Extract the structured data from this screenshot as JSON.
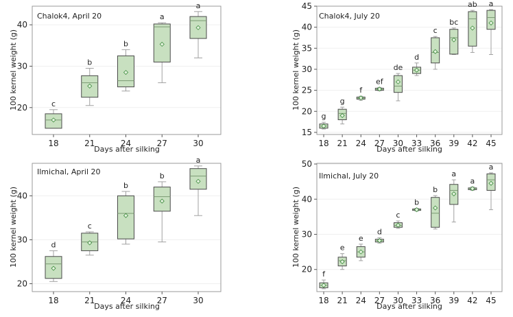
{
  "chart_data": [
    {
      "type": "box",
      "title": "Chalok4, April 20",
      "xlabel": "Days after silking",
      "ylabel": "100 kernel weight (g)",
      "ylim": [
        13.5,
        44.5
      ],
      "yticks": [
        20,
        30,
        40
      ],
      "categories": [
        "18",
        "21",
        "24",
        "27",
        "30"
      ],
      "boxes": [
        {
          "min": 15.0,
          "q1": 15.0,
          "median": 17.0,
          "q3": 18.5,
          "max": 19.5,
          "mean": 17.0,
          "letter": "c"
        },
        {
          "min": 20.5,
          "q1": 22.5,
          "median": 26.0,
          "q3": 27.7,
          "max": 29.5,
          "mean": 25.2,
          "letter": "b"
        },
        {
          "min": 24.0,
          "q1": 25.0,
          "median": 26.5,
          "q3": 32.5,
          "max": 34.0,
          "mean": 28.5,
          "letter": "b"
        },
        {
          "min": 26.0,
          "q1": 31.0,
          "median": 39.5,
          "q3": 40.2,
          "max": 40.5,
          "mean": 35.3,
          "letter": "a"
        },
        {
          "min": 32.0,
          "q1": 36.7,
          "median": 41.0,
          "q3": 42.0,
          "max": 43.2,
          "mean": 39.3,
          "letter": "a"
        }
      ]
    },
    {
      "type": "box",
      "title": "Chalok4, July 20",
      "xlabel": "Days after silking",
      "ylabel": "100 kernel weight (g)",
      "ylim": [
        14.5,
        45
      ],
      "yticks": [
        15,
        20,
        25,
        30,
        35,
        40,
        45
      ],
      "categories": [
        "18",
        "21",
        "24",
        "27",
        "30",
        "33",
        "36",
        "39",
        "42",
        "45"
      ],
      "boxes": [
        {
          "min": 15.8,
          "q1": 16.0,
          "median": 16.5,
          "q3": 17.0,
          "max": 17.4,
          "mean": 16.5,
          "letter": "g"
        },
        {
          "min": 17.0,
          "q1": 18.0,
          "median": 19.5,
          "q3": 20.5,
          "max": 21.0,
          "mean": 19.0,
          "letter": "g"
        },
        {
          "min": 22.6,
          "q1": 22.9,
          "median": 23.1,
          "q3": 23.4,
          "max": 23.6,
          "mean": 23.2,
          "letter": "f"
        },
        {
          "min": 24.9,
          "q1": 25.0,
          "median": 25.2,
          "q3": 25.5,
          "max": 25.7,
          "mean": 25.3,
          "letter": "ef"
        },
        {
          "min": 22.5,
          "q1": 24.5,
          "median": 26.0,
          "q3": 28.5,
          "max": 29.0,
          "mean": 27.0,
          "letter": "de"
        },
        {
          "min": 28.5,
          "q1": 29.0,
          "median": 29.8,
          "q3": 30.5,
          "max": 31.5,
          "mean": 29.8,
          "letter": "d"
        },
        {
          "min": 30.0,
          "q1": 31.5,
          "median": 34.0,
          "q3": 37.5,
          "max": 37.8,
          "mean": 34.2,
          "letter": "c"
        },
        {
          "min": 33.5,
          "q1": 33.6,
          "median": 37.5,
          "q3": 39.5,
          "max": 39.8,
          "mean": 37.0,
          "letter": "bc"
        },
        {
          "min": 34.0,
          "q1": 35.5,
          "median": 42.0,
          "q3": 43.7,
          "max": 44.0,
          "mean": 39.8,
          "letter": "ab"
        },
        {
          "min": 33.5,
          "q1": 39.5,
          "median": 42.3,
          "q3": 44.0,
          "max": 44.2,
          "mean": 41.0,
          "letter": "a"
        }
      ]
    },
    {
      "type": "box",
      "title": "Ilmichal, April 20",
      "xlabel": "Days after silking",
      "ylabel": "100 kernel weight (g)",
      "ylim": [
        18.2,
        47.4
      ],
      "yticks": [
        20,
        30,
        40
      ],
      "categories": [
        "18",
        "21",
        "24",
        "27",
        "30"
      ],
      "boxes": [
        {
          "min": 20.5,
          "q1": 21.2,
          "median": 24.5,
          "q3": 26.2,
          "max": 27.5,
          "mean": 23.5,
          "letter": "d"
        },
        {
          "min": 26.5,
          "q1": 27.5,
          "median": 29.5,
          "q3": 31.5,
          "max": 31.8,
          "mean": 29.3,
          "letter": "c"
        },
        {
          "min": 29.0,
          "q1": 30.2,
          "median": 36.0,
          "q3": 40.0,
          "max": 41.0,
          "mean": 35.5,
          "letter": "b"
        },
        {
          "min": 29.5,
          "q1": 36.5,
          "median": 39.8,
          "q3": 42.0,
          "max": 43.2,
          "mean": 38.8,
          "letter": "b"
        },
        {
          "min": 35.5,
          "q1": 41.5,
          "median": 44.5,
          "q3": 46.2,
          "max": 46.8,
          "mean": 43.3,
          "letter": "a"
        }
      ]
    },
    {
      "type": "box",
      "title": "Ilmichal, July 20",
      "xlabel": "Days after silking",
      "ylabel": "100 kernel weight (g)",
      "ylim": [
        13.7,
        50.2
      ],
      "yticks": [
        20,
        30,
        40,
        50
      ],
      "categories": [
        "18",
        "21",
        "24",
        "27",
        "30",
        "33",
        "36",
        "39",
        "42",
        "45"
      ],
      "boxes": [
        {
          "min": 14.5,
          "q1": 14.8,
          "median": 15.5,
          "q3": 16.2,
          "max": 17.0,
          "mean": 15.5,
          "letter": "f"
        },
        {
          "min": 20.0,
          "q1": 21.0,
          "median": 22.5,
          "q3": 23.5,
          "max": 24.5,
          "mean": 22.2,
          "letter": "e"
        },
        {
          "min": 22.5,
          "q1": 23.5,
          "median": 25.0,
          "q3": 26.5,
          "max": 27.2,
          "mean": 25.0,
          "letter": "e"
        },
        {
          "min": 27.5,
          "q1": 27.8,
          "median": 28.2,
          "q3": 28.6,
          "max": 29.0,
          "mean": 28.2,
          "letter": "d"
        },
        {
          "min": 31.7,
          "q1": 32.0,
          "median": 32.5,
          "q3": 33.3,
          "max": 33.8,
          "mean": 32.6,
          "letter": "c"
        },
        {
          "min": 36.6,
          "q1": 36.8,
          "median": 37.0,
          "q3": 37.2,
          "max": 37.4,
          "mean": 37.0,
          "letter": "b"
        },
        {
          "min": 31.5,
          "q1": 32.0,
          "median": 36.0,
          "q3": 40.5,
          "max": 41.0,
          "mean": 37.5,
          "letter": "b"
        },
        {
          "min": 33.5,
          "q1": 38.5,
          "median": 42.5,
          "q3": 44.2,
          "max": 45.5,
          "mean": 41.5,
          "letter": "a"
        },
        {
          "min": 42.5,
          "q1": 42.7,
          "median": 43.0,
          "q3": 43.2,
          "max": 43.5,
          "mean": 43.0,
          "letter": "a"
        },
        {
          "min": 37.0,
          "q1": 42.5,
          "median": 45.5,
          "q3": 47.2,
          "max": 47.5,
          "mean": 44.5,
          "letter": "a"
        }
      ]
    }
  ],
  "colors": {
    "box_fill": "#c8e0c0",
    "box_edge": "#4a4a4a",
    "whisker": "#a0a0a0",
    "mean_marker": "#3c8c3c",
    "frame": "#9a9a9a",
    "grid": "#efefef"
  }
}
